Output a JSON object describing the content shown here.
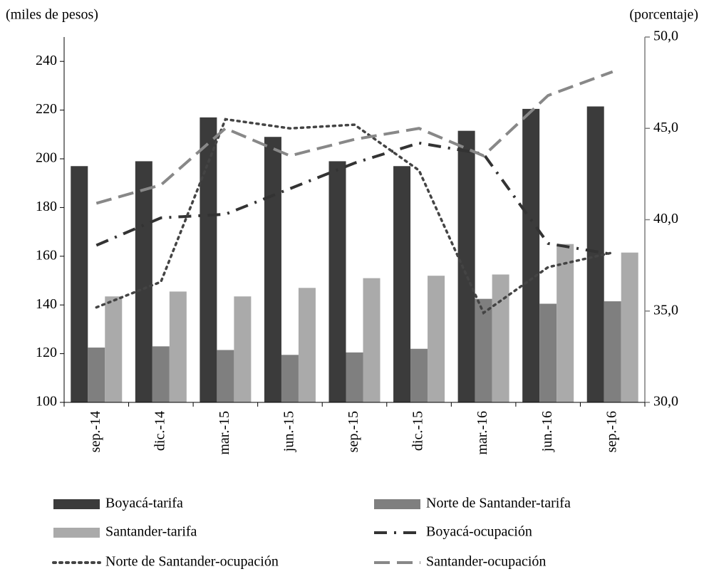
{
  "chart_data": {
    "type": "combo",
    "y_label": "(miles  de pesos)",
    "y2_label": "(porcentaje)",
    "categories": [
      "sep.-14",
      "dic.-14",
      "mar.-15",
      "jun.-15",
      "sep.-15",
      "dic.-15",
      "mar.-16",
      "jun.-16",
      "sep.-16"
    ],
    "ylim": [
      100,
      250
    ],
    "yticks": [
      100,
      120,
      140,
      160,
      180,
      200,
      220,
      240
    ],
    "y2lim": [
      30,
      50
    ],
    "y2ticks": [
      {
        "value": 30,
        "label": "30,0"
      },
      {
        "value": 35,
        "label": "35,0"
      },
      {
        "value": 40,
        "label": "40,0"
      },
      {
        "value": 45,
        "label": "45,0"
      },
      {
        "value": 50,
        "label": "50,0"
      }
    ],
    "series": [
      {
        "name": "Boyacá-tarifa",
        "type": "bar",
        "color": "#3b3b3b",
        "values": [
          197,
          199,
          217,
          209,
          199,
          197,
          211.5,
          220.5,
          221.5
        ]
      },
      {
        "name": "Norte de Santander-tarifa",
        "type": "bar",
        "color": "#7f7f7f",
        "values": [
          122.5,
          123,
          121.5,
          119.5,
          120.5,
          122,
          142.5,
          140.5,
          141.5
        ]
      },
      {
        "name": "Santander-tarifa",
        "type": "bar",
        "color": "#aaaaaa",
        "values": [
          143.5,
          145.5,
          143.5,
          147,
          151,
          152,
          152.5,
          165,
          161.5
        ]
      },
      {
        "name": "Boyacá-ocupación",
        "type": "line",
        "axis": "y2",
        "color": "#333333",
        "dash": "dashdot",
        "values": [
          38.6,
          40.1,
          40.3,
          41.7,
          43.1,
          44.2,
          43.6,
          38.7,
          38.1
        ]
      },
      {
        "name": "Norte de Santander-ocupación",
        "type": "line",
        "axis": "y2",
        "color": "#444444",
        "dash": "dot",
        "values": [
          35.2,
          36.6,
          45.5,
          45.0,
          45.2,
          42.7,
          34.9,
          37.4,
          38.2
        ]
      },
      {
        "name": "Santander-ocupación",
        "type": "line",
        "axis": "y2",
        "color": "#888888",
        "dash": "dash",
        "values": [
          40.9,
          41.9,
          45.0,
          43.5,
          44.4,
          45.0,
          43.5,
          46.8,
          48.1
        ]
      }
    ]
  }
}
